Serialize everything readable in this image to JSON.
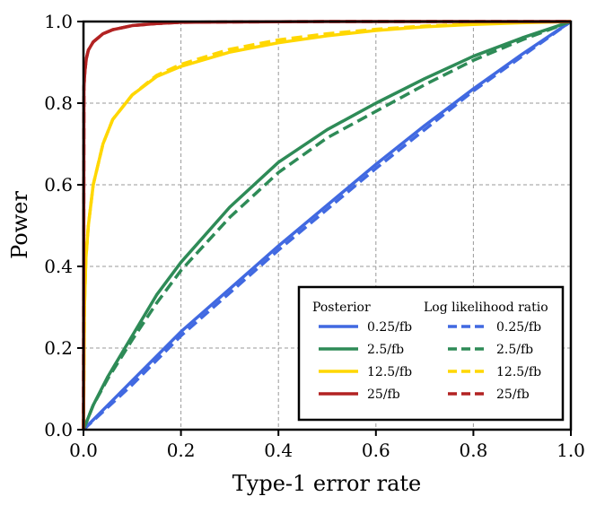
{
  "chart_data": {
    "type": "line",
    "title": "",
    "xlabel": "Type-1 error rate",
    "ylabel": "Power",
    "xlim": [
      0,
      1
    ],
    "ylim": [
      0,
      1
    ],
    "xticks": [
      "0.0",
      "0.2",
      "0.4",
      "0.6",
      "0.8",
      "1.0"
    ],
    "yticks": [
      "0.0",
      "0.2",
      "0.4",
      "0.6",
      "0.8",
      "1.0"
    ],
    "grid": true,
    "legend": {
      "placement": "bottom-right",
      "group_titles": [
        "Posterior",
        "Log likelihood ratio"
      ]
    },
    "series": [
      {
        "name": "0.25/fb",
        "group": "Posterior",
        "color": "#4169e1",
        "dash": "solid",
        "x": [
          0,
          0.05,
          0.1,
          0.2,
          0.3,
          0.4,
          0.5,
          0.6,
          0.7,
          0.8,
          0.9,
          1.0
        ],
        "y": [
          0,
          0.06,
          0.12,
          0.24,
          0.345,
          0.45,
          0.55,
          0.65,
          0.745,
          0.835,
          0.92,
          1.0
        ]
      },
      {
        "name": "2.5/fb",
        "group": "Posterior",
        "color": "#2e8b57",
        "dash": "solid",
        "x": [
          0,
          0.02,
          0.05,
          0.1,
          0.15,
          0.2,
          0.3,
          0.4,
          0.5,
          0.6,
          0.7,
          0.8,
          0.9,
          1.0
        ],
        "y": [
          0,
          0.06,
          0.13,
          0.23,
          0.33,
          0.41,
          0.545,
          0.655,
          0.735,
          0.8,
          0.86,
          0.915,
          0.96,
          1.0
        ]
      },
      {
        "name": "12.5/fb",
        "group": "Posterior",
        "color": "#ffd700",
        "dash": "solid",
        "x": [
          0,
          0.002,
          0.005,
          0.01,
          0.02,
          0.04,
          0.06,
          0.1,
          0.15,
          0.2,
          0.3,
          0.4,
          0.5,
          0.6,
          0.7,
          0.8,
          0.9,
          1.0
        ],
        "y": [
          0,
          0.3,
          0.42,
          0.5,
          0.6,
          0.7,
          0.76,
          0.82,
          0.865,
          0.89,
          0.925,
          0.948,
          0.965,
          0.978,
          0.987,
          0.993,
          0.997,
          1.0
        ]
      },
      {
        "name": "25/fb",
        "group": "Posterior",
        "color": "#b22222",
        "dash": "solid",
        "x": [
          0,
          0.001,
          0.003,
          0.006,
          0.01,
          0.02,
          0.04,
          0.06,
          0.1,
          0.15,
          0.2,
          0.3,
          0.5,
          1.0
        ],
        "y": [
          0,
          0.84,
          0.88,
          0.91,
          0.93,
          0.95,
          0.97,
          0.98,
          0.99,
          0.995,
          0.998,
          0.999,
          1.0,
          1.0
        ]
      },
      {
        "name": "0.25/fb",
        "group": "Log likelihood ratio",
        "color": "#4169e1",
        "dash": "dashed",
        "x": [
          0,
          0.05,
          0.1,
          0.2,
          0.3,
          0.4,
          0.5,
          0.6,
          0.7,
          0.8,
          0.9,
          1.0
        ],
        "y": [
          0,
          0.055,
          0.11,
          0.23,
          0.335,
          0.44,
          0.54,
          0.64,
          0.735,
          0.83,
          0.915,
          1.0
        ]
      },
      {
        "name": "2.5/fb",
        "group": "Log likelihood ratio",
        "color": "#2e8b57",
        "dash": "dashed",
        "x": [
          0,
          0.02,
          0.05,
          0.1,
          0.15,
          0.2,
          0.3,
          0.4,
          0.5,
          0.6,
          0.7,
          0.8,
          0.9,
          1.0
        ],
        "y": [
          0,
          0.06,
          0.125,
          0.22,
          0.31,
          0.39,
          0.52,
          0.63,
          0.715,
          0.78,
          0.845,
          0.905,
          0.955,
          1.0
        ]
      },
      {
        "name": "12.5/fb",
        "group": "Log likelihood ratio",
        "color": "#ffd700",
        "dash": "dashed",
        "x": [
          0,
          0.002,
          0.005,
          0.01,
          0.02,
          0.04,
          0.06,
          0.1,
          0.15,
          0.2,
          0.3,
          0.4,
          0.5,
          0.6,
          0.7,
          0.8,
          0.9,
          1.0
        ],
        "y": [
          0,
          0.3,
          0.42,
          0.5,
          0.6,
          0.7,
          0.76,
          0.82,
          0.868,
          0.895,
          0.932,
          0.955,
          0.97,
          0.981,
          0.989,
          0.994,
          0.998,
          1.0
        ]
      },
      {
        "name": "25/fb",
        "group": "Log likelihood ratio",
        "color": "#b22222",
        "dash": "dashed",
        "x": [
          0,
          0.001,
          0.003,
          0.006,
          0.01,
          0.02,
          0.04,
          0.06,
          0.1,
          0.15,
          0.2,
          0.3,
          0.5,
          1.0
        ],
        "y": [
          0,
          0.84,
          0.88,
          0.91,
          0.93,
          0.95,
          0.97,
          0.98,
          0.99,
          0.995,
          0.998,
          0.999,
          1.0,
          1.0
        ]
      }
    ]
  }
}
